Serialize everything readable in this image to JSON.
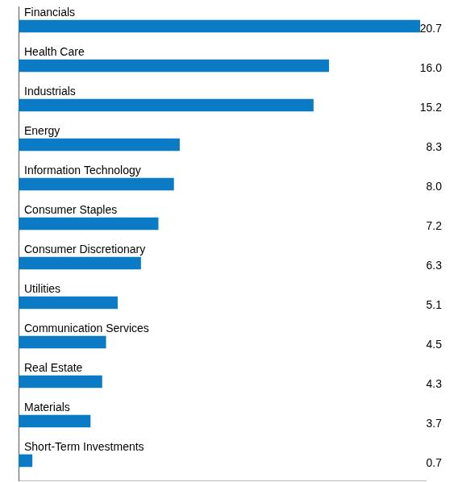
{
  "chart_data": {
    "type": "bar",
    "orientation": "horizontal",
    "categories": [
      "Financials",
      "Health Care",
      "Industrials",
      "Energy",
      "Information Technology",
      "Consumer Staples",
      "Consumer Discretionary",
      "Utilities",
      "Communication Services",
      "Real Estate",
      "Materials",
      "Short-Term Investments"
    ],
    "values": [
      20.7,
      16.0,
      15.2,
      8.3,
      8.0,
      7.2,
      6.3,
      5.1,
      4.5,
      4.3,
      3.7,
      0.7
    ],
    "value_labels": [
      "20.7",
      "16.0",
      "15.2",
      "8.3",
      "8.0",
      "7.2",
      "6.3",
      "5.1",
      "4.5",
      "4.3",
      "3.7",
      "0.7"
    ],
    "color": "#0a7bc4",
    "xlim": [
      0,
      21
    ],
    "grid": false,
    "data_labels": true,
    "tick_labels": false
  }
}
